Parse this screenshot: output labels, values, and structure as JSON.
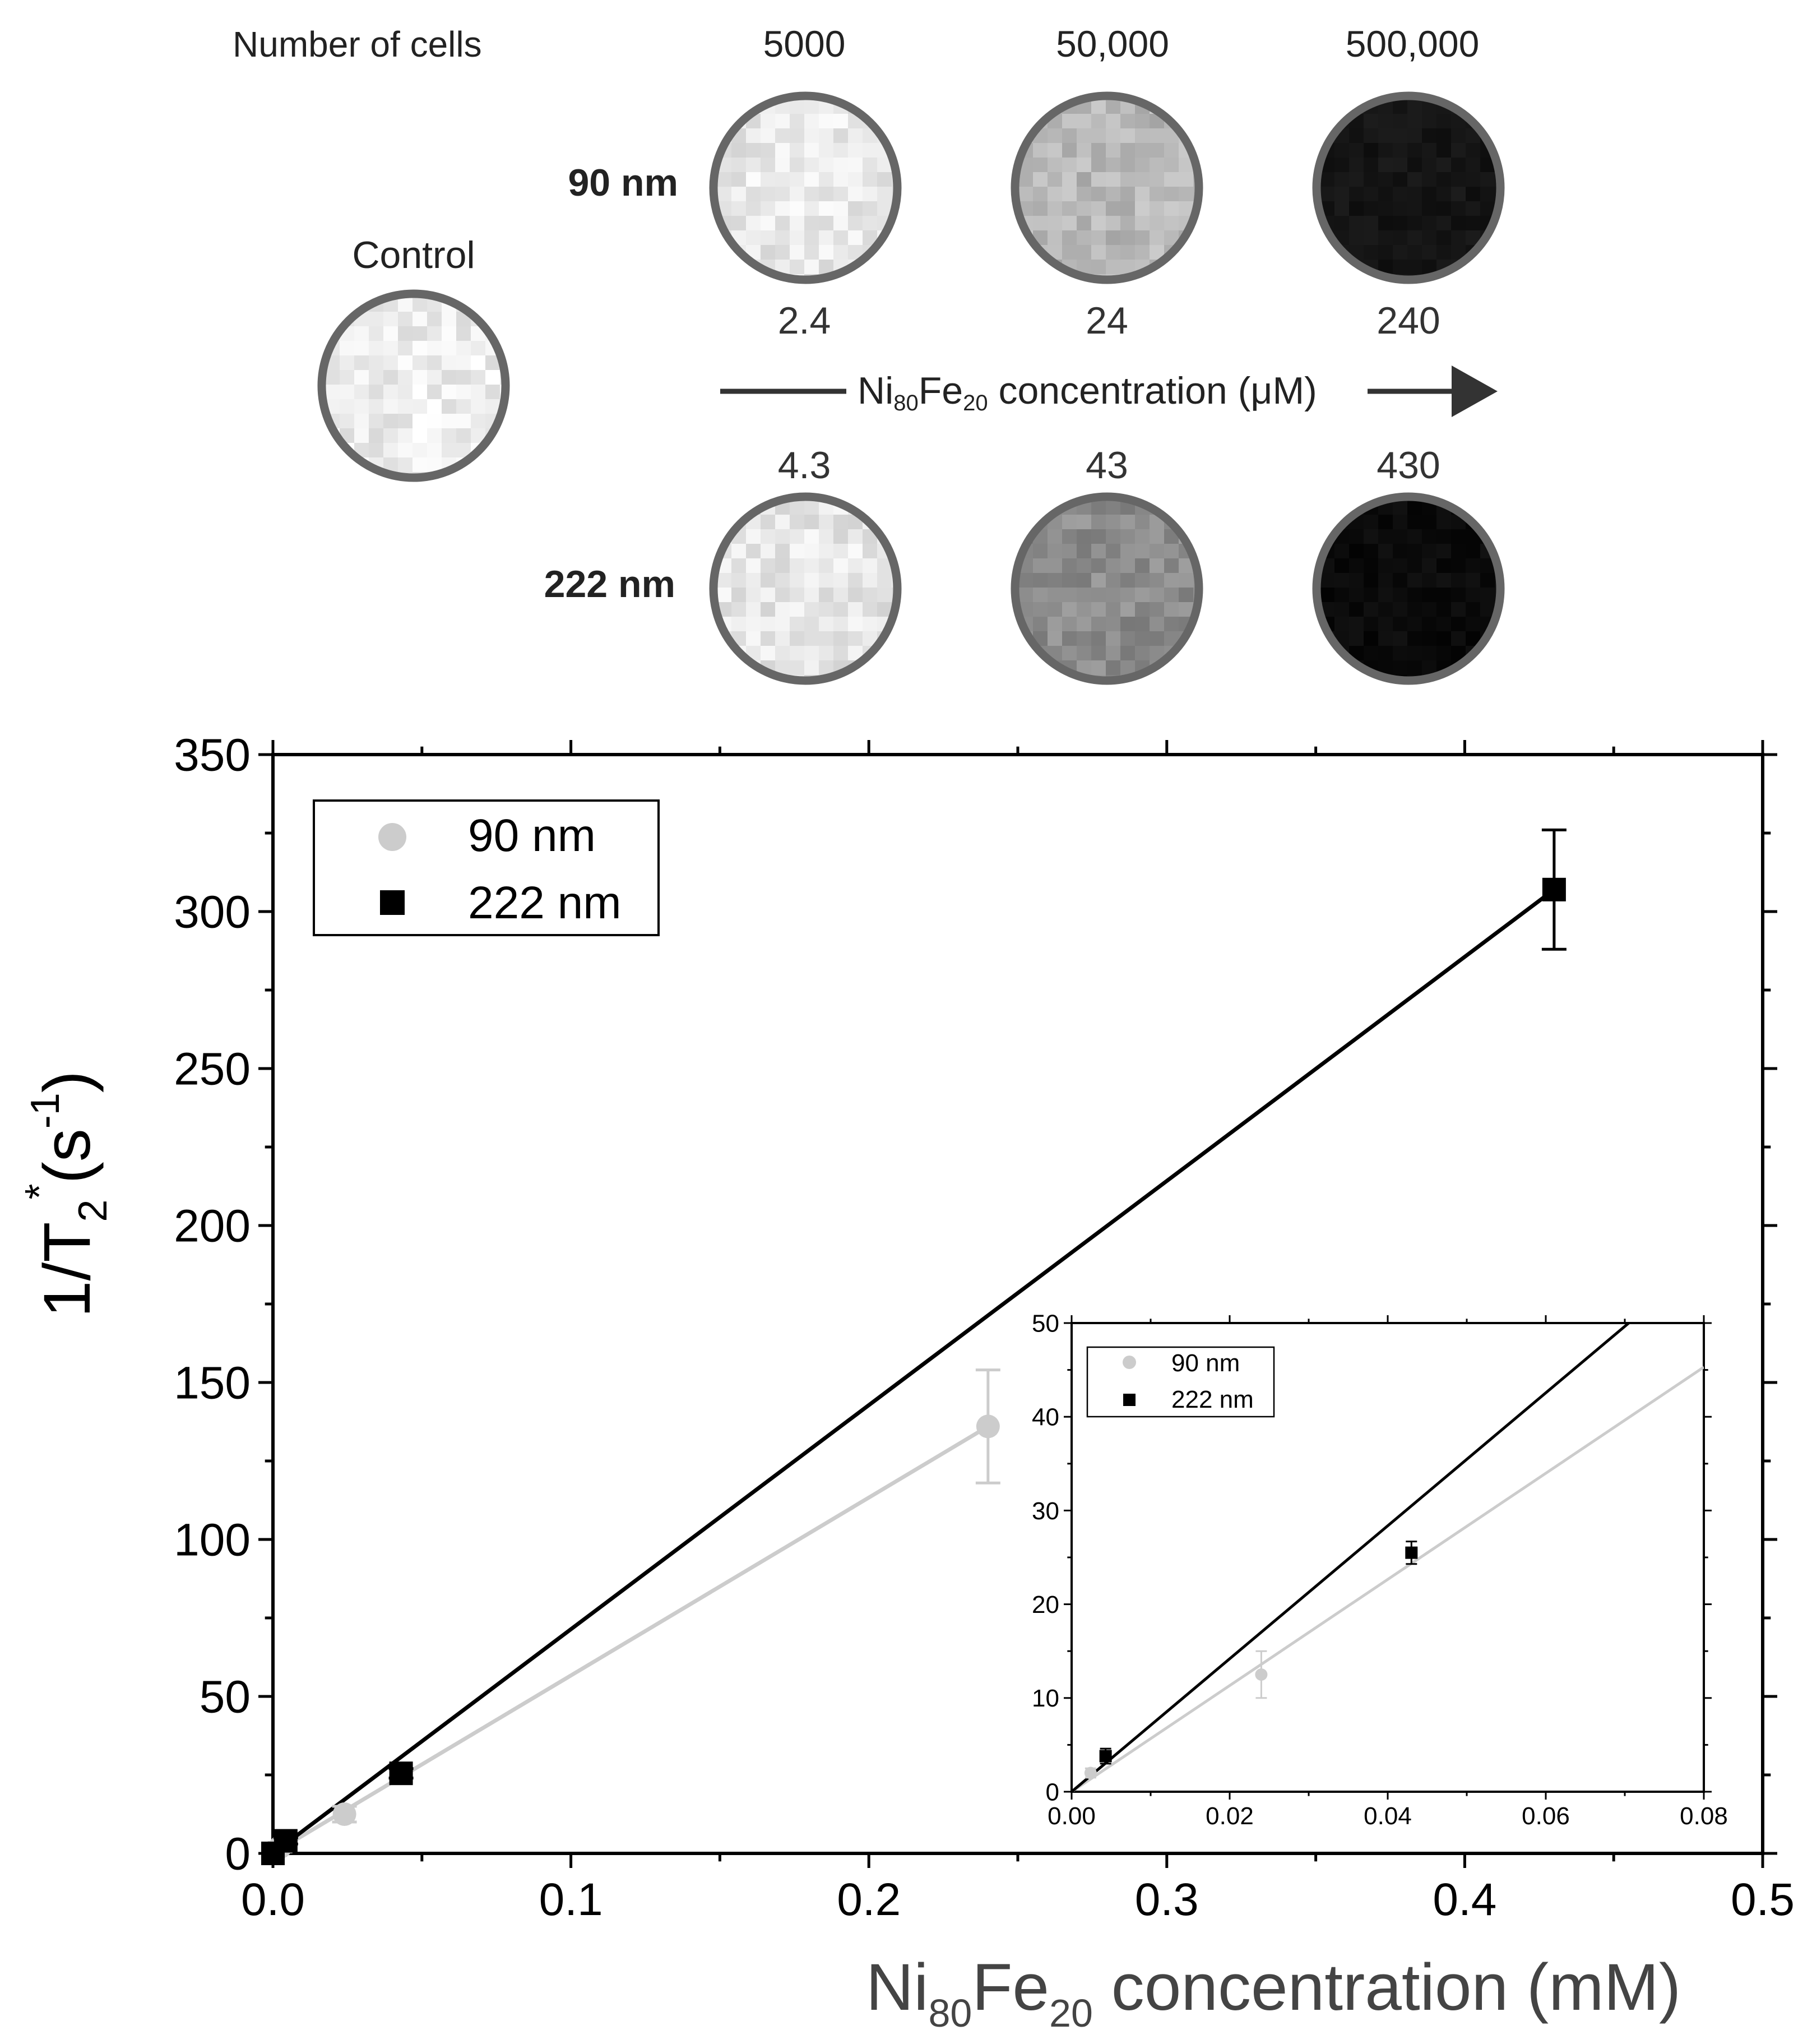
{
  "panel_top": {
    "cells_label": "Number of cells",
    "cell_counts": [
      "5000",
      "50,000",
      "500,000"
    ],
    "row_labels": [
      "90 nm",
      "222 nm"
    ],
    "control_label": "Control",
    "concentrations_90": [
      "2.4",
      "24",
      "240"
    ],
    "concentrations_222": [
      "4.3",
      "43",
      "430"
    ],
    "arrow_label": {
      "base1": "Ni",
      "sub1": "80",
      "base2": "Fe",
      "sub2": "20",
      "rest": " concentration (μM)"
    },
    "phantom_brightness": {
      "control": 0.93,
      "r90": [
        0.91,
        0.72,
        0.08
      ],
      "r222": [
        0.9,
        0.55,
        0.04
      ]
    },
    "colors": {
      "ring": "#666666",
      "arrow": "#333333"
    }
  },
  "chart_data": [
    {
      "type": "scatter",
      "xlabel": {
        "base1": "Ni",
        "sub1": "80",
        "base2": "Fe",
        "sub2": "20",
        "rest": " concentration (mM)"
      },
      "ylabel": {
        "pre": "1/T",
        "sub": "2",
        "sup": "*",
        "mid": "(s",
        "sup2": "-1",
        "post": ")"
      },
      "xlim": [
        0,
        0.5
      ],
      "ylim": [
        0,
        350
      ],
      "xticks": [
        0.0,
        0.1,
        0.2,
        0.3,
        0.4,
        0.5
      ],
      "xtick_labels": [
        "0.0",
        "0.1",
        "0.2",
        "0.3",
        "0.4",
        "0.5"
      ],
      "yticks": [
        0,
        50,
        100,
        150,
        200,
        250,
        300,
        350
      ],
      "ytick_labels": [
        "0",
        "50",
        "100",
        "150",
        "200",
        "250",
        "300",
        "350"
      ],
      "legend": "top-left",
      "series": [
        {
          "name": "90 nm",
          "marker": "circle",
          "color": "#cccccc",
          "x": [
            0,
            0.0024,
            0.024,
            0.24
          ],
          "y": [
            0,
            2,
            12.5,
            136
          ],
          "err": [
            0,
            1.5,
            2.5,
            18
          ],
          "fit": {
            "x": [
              0,
              0.24
            ],
            "y": [
              0,
              136
            ]
          }
        },
        {
          "name": "222 nm",
          "marker": "square",
          "color": "#000000",
          "x": [
            0,
            0.0043,
            0.043,
            0.43
          ],
          "y": [
            0,
            4,
            25.5,
            307
          ],
          "err": [
            0,
            1,
            1.5,
            19
          ],
          "fit": {
            "x": [
              0,
              0.43
            ],
            "y": [
              0,
              307
            ]
          }
        }
      ]
    },
    {
      "type": "scatter",
      "inset": true,
      "xlim": [
        0,
        0.08
      ],
      "ylim": [
        0,
        50
      ],
      "xticks": [
        0.0,
        0.02,
        0.04,
        0.06,
        0.08
      ],
      "xtick_labels": [
        "0.00",
        "0.02",
        "0.04",
        "0.06",
        "0.08"
      ],
      "yticks": [
        0,
        10,
        20,
        30,
        40,
        50
      ],
      "ytick_labels": [
        "0",
        "10",
        "20",
        "30",
        "40",
        "50"
      ],
      "legend": "top-left",
      "series": [
        {
          "name": "90 nm",
          "marker": "circle",
          "color": "#cccccc",
          "x": [
            0.0024,
            0.024
          ],
          "y": [
            2,
            12.5
          ],
          "err": [
            0.5,
            2.5
          ],
          "fit": {
            "x": [
              0,
              0.08
            ],
            "y": [
              0,
              45.3
            ]
          }
        },
        {
          "name": "222 nm",
          "marker": "square",
          "color": "#000000",
          "x": [
            0.0043,
            0.043
          ],
          "y": [
            3.8,
            25.5
          ],
          "err": [
            0.8,
            1.2
          ],
          "fit": {
            "x": [
              0,
              0.0705
            ],
            "y": [
              0,
              50
            ]
          }
        }
      ]
    }
  ]
}
